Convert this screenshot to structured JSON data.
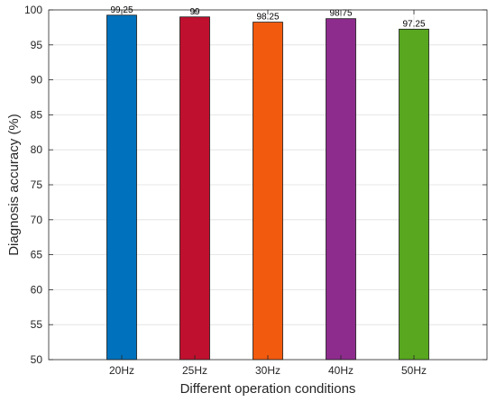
{
  "chart_data": {
    "type": "bar",
    "title": "",
    "xlabel": "Different operation conditions",
    "ylabel": "Diagnosis accuracy (%)",
    "categories": [
      "20Hz",
      "25Hz",
      "30Hz",
      "40Hz",
      "50Hz"
    ],
    "values": [
      99.25,
      99,
      98.25,
      98.75,
      97.25
    ],
    "data_labels": [
      "99.25",
      "99",
      "98.25",
      "98.75",
      "97.25"
    ],
    "colors": [
      "#0072BD",
      "#C0102F",
      "#F25A0E",
      "#8E2C8E",
      "#58A71F"
    ],
    "ylim": [
      50,
      100
    ],
    "yticks": [
      50,
      55,
      60,
      65,
      70,
      75,
      80,
      85,
      90,
      95,
      100
    ],
    "grid": true,
    "box": true
  }
}
